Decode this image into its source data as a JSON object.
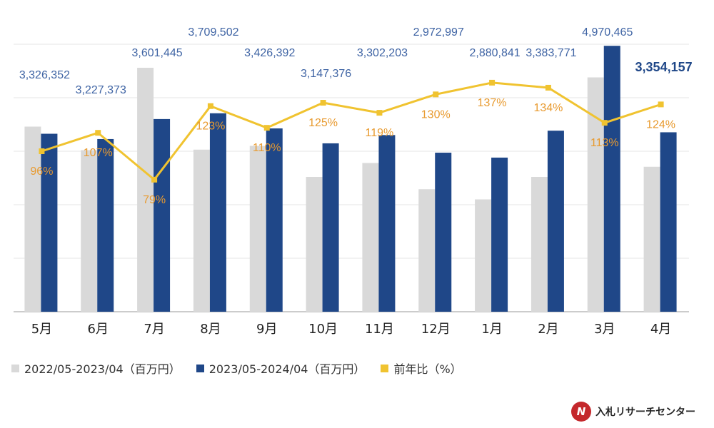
{
  "chart_data": {
    "type": "bar",
    "categories": [
      "5月",
      "6月",
      "7月",
      "8月",
      "9月",
      "10月",
      "11月",
      "12月",
      "1月",
      "2月",
      "3月",
      "4月"
    ],
    "series": [
      {
        "name": "2022/05-2023/04（百万円）",
        "kind": "bar",
        "color": "#d9d9d9",
        "values": [
          3460000,
          3020000,
          4560000,
          3030000,
          3100000,
          2520000,
          2780000,
          2290000,
          2100000,
          2520000,
          4380000,
          2710000
        ]
      },
      {
        "name": "2023/05-2024/04（百万円）",
        "kind": "bar",
        "color": "#1f4788",
        "values": [
          3326352,
          3227373,
          3601445,
          3709502,
          3426392,
          3147376,
          3302203,
          2972997,
          2880841,
          3383771,
          4970465,
          3354157
        ]
      },
      {
        "name": "前年比（%）",
        "kind": "line",
        "color": "#f0c330",
        "values": [
          96,
          107,
          79,
          123,
          110,
          125,
          119,
          130,
          137,
          134,
          113,
          124
        ]
      }
    ],
    "bar_labels": [
      "3,326,352",
      "3,227,373",
      "3,601,445",
      "3,709,502",
      "3,426,392",
      "3,147,376",
      "3,302,203",
      "2,972,997",
      "2,880,841",
      "3,383,771",
      "4,970,465",
      "3,354,157"
    ],
    "pct_labels": [
      "96%",
      "107%",
      "79%",
      "123%",
      "110%",
      "125%",
      "119%",
      "130%",
      "137%",
      "134%",
      "113%",
      "124%"
    ],
    "highlight_index": 11,
    "ylim": [
      0,
      5000000
    ],
    "ylim_pct": [
      0,
      160
    ],
    "title": "",
    "xlabel": "",
    "ylabel": "",
    "grid": true,
    "legend_position": "bottom-left",
    "colors": {
      "bar_prev": "#d9d9d9",
      "bar_curr": "#1f4788",
      "line": "#f0c330",
      "label_blue": "#3f64a4",
      "label_pct": "#e89a2f",
      "grid": "#e6e6e6",
      "axis": "#999999"
    }
  },
  "legend": {
    "items": [
      {
        "label": "2022/05-2023/04（百万円）",
        "color": "#d9d9d9"
      },
      {
        "label": "2023/05-2024/04（百万円）",
        "color": "#1f4788"
      },
      {
        "label": "前年比（%）",
        "color": "#f0c330"
      }
    ]
  },
  "logo": {
    "mark": "N",
    "text": "入札リサーチセンター"
  }
}
